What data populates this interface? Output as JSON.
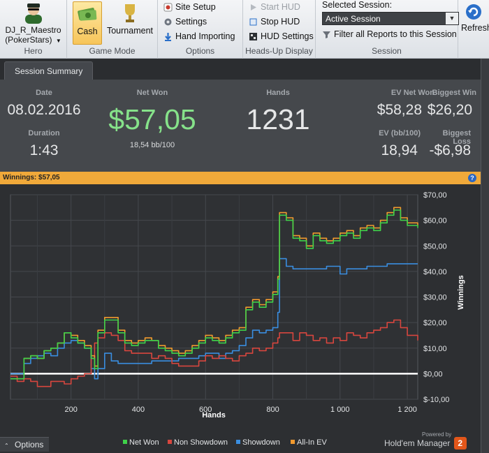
{
  "ribbon": {
    "hero": {
      "name": "DJ_R_Maestro",
      "site": "(PokerStars)",
      "group_label": "Hero"
    },
    "game_mode": {
      "cash_label": "Cash",
      "tournament_label": "Tournament",
      "group_label": "Game Mode"
    },
    "options": {
      "site_setup": "Site Setup",
      "settings": "Settings",
      "hand_importing": "Hand Importing",
      "group_label": "Options"
    },
    "hud": {
      "start_hud": "Start HUD",
      "stop_hud": "Stop HUD",
      "hud_settings": "HUD Settings",
      "group_label": "Heads-Up Display"
    },
    "session": {
      "selected_label": "Selected Session:",
      "dropdown_value": "Active Session",
      "filter_label": "Filter all Reports to this Session",
      "group_label": "Session",
      "refresh_label": "Refresh"
    }
  },
  "tab": {
    "label": "Session Summary"
  },
  "summary": {
    "date_label": "Date",
    "date_value": "08.02.2016",
    "duration_label": "Duration",
    "duration_value": "1:43",
    "net_won_label": "Net Won",
    "net_won_value": "$57,05",
    "net_won_sub": "18,54 bb/100",
    "hands_label": "Hands",
    "hands_value": "1231",
    "ev_net_won_label": "EV Net Won",
    "ev_net_won_value": "$58,28",
    "biggest_win_label": "Biggest Win",
    "biggest_win_value": "$26,20",
    "ev_bb_label": "EV (bb/100)",
    "ev_bb_value": "18,94",
    "biggest_loss_label": "Biggest Loss",
    "biggest_loss_value": "-$6,98"
  },
  "winnings_bar": {
    "label": "Winnings:",
    "value": "$57,05"
  },
  "bottom": {
    "options_label": "Options",
    "powered_by": "Powered by",
    "brand": "Hold'em Manager",
    "brand_num": "2"
  },
  "colors": {
    "net_won": "#3fd24a",
    "non_showdown": "#d8463e",
    "showdown": "#3a8ee0",
    "all_in_ev": "#f19a2e",
    "zero_line": "#ffffff",
    "net_won_text": "#86e28a"
  },
  "chart_data": {
    "type": "line",
    "xlabel": "Hands",
    "ylabel": "Winnings",
    "xlim": [
      20,
      1231
    ],
    "ylim": [
      -10,
      70
    ],
    "x_ticks": [
      200,
      400,
      600,
      800,
      1000,
      1200
    ],
    "x_tick_labels": [
      "200",
      "400",
      "600",
      "800",
      "1 000",
      "1 200"
    ],
    "y_ticks": [
      -10,
      0,
      10,
      20,
      30,
      40,
      50,
      60,
      70
    ],
    "y_tick_labels": [
      "-10,00",
      "0,00",
      "10,00",
      "20,00",
      "30,00",
      "40,00",
      "50,00",
      "60,00",
      "70,00"
    ],
    "grid": true,
    "legend_position": "bottom",
    "series": [
      {
        "name": "Net Won",
        "color": "#3fd24a",
        "x": [
          20,
          40,
          60,
          80,
          100,
          120,
          140,
          160,
          180,
          200,
          220,
          240,
          260,
          270,
          280,
          300,
          320,
          340,
          360,
          380,
          400,
          420,
          440,
          460,
          480,
          500,
          520,
          540,
          560,
          580,
          600,
          620,
          640,
          660,
          680,
          700,
          720,
          740,
          760,
          780,
          800,
          815,
          820,
          840,
          860,
          880,
          900,
          920,
          940,
          960,
          980,
          1000,
          1020,
          1040,
          1060,
          1080,
          1100,
          1120,
          1140,
          1160,
          1180,
          1200,
          1231
        ],
        "y": [
          -2,
          -2,
          6,
          7,
          6,
          9,
          10,
          12,
          16,
          14,
          12,
          10,
          6,
          2,
          16,
          21,
          21,
          16,
          12,
          11,
          12,
          13,
          13,
          10,
          9,
          8,
          7,
          8,
          10,
          12,
          14,
          13,
          12,
          14,
          16,
          17,
          25,
          28,
          26,
          28,
          31,
          37,
          62,
          60,
          53,
          52,
          49,
          54,
          52,
          51,
          52,
          54,
          55,
          53,
          56,
          57,
          56,
          59,
          62,
          64,
          60,
          58,
          57
        ]
      },
      {
        "name": "Non Showdown",
        "color": "#d8463e",
        "x": [
          20,
          40,
          60,
          80,
          100,
          120,
          140,
          160,
          180,
          200,
          220,
          240,
          260,
          270,
          280,
          300,
          320,
          340,
          360,
          380,
          400,
          420,
          440,
          460,
          480,
          500,
          520,
          540,
          560,
          580,
          600,
          620,
          640,
          660,
          680,
          700,
          720,
          740,
          760,
          780,
          800,
          815,
          820,
          840,
          860,
          880,
          900,
          920,
          940,
          960,
          980,
          1000,
          1020,
          1040,
          1060,
          1080,
          1100,
          1120,
          1140,
          1160,
          1180,
          1200,
          1231
        ],
        "y": [
          -1,
          -3,
          -2,
          -3,
          -5,
          -5,
          -3,
          -3,
          -4,
          -2,
          -1,
          0,
          6,
          12,
          14,
          16,
          15,
          13,
          9,
          8,
          8,
          8,
          6,
          7,
          6,
          4,
          3,
          3,
          3,
          5,
          7,
          6,
          7,
          6,
          5,
          7,
          8,
          10,
          9,
          10,
          12,
          14,
          16,
          16,
          13,
          16,
          15,
          13,
          14,
          12,
          14,
          13,
          16,
          15,
          14,
          16,
          17,
          18,
          20,
          21,
          18,
          15,
          13
        ]
      },
      {
        "name": "Showdown",
        "color": "#3a8ee0",
        "x": [
          20,
          40,
          60,
          80,
          100,
          120,
          140,
          160,
          180,
          200,
          220,
          240,
          260,
          270,
          280,
          300,
          320,
          340,
          360,
          380,
          400,
          420,
          440,
          460,
          480,
          500,
          520,
          540,
          560,
          580,
          600,
          620,
          640,
          660,
          680,
          700,
          720,
          740,
          760,
          780,
          800,
          815,
          820,
          840,
          860,
          880,
          900,
          920,
          940,
          960,
          980,
          1000,
          1020,
          1040,
          1060,
          1080,
          1100,
          1120,
          1140,
          1160,
          1180,
          1200,
          1231
        ],
        "y": [
          0,
          0,
          4,
          6,
          7,
          8,
          7,
          10,
          12,
          13,
          12,
          10,
          2,
          -2,
          2,
          8,
          5,
          4,
          4,
          4,
          4,
          4,
          5,
          5,
          5,
          5,
          6,
          6,
          6,
          7,
          8,
          8,
          6,
          8,
          9,
          11,
          14,
          17,
          16,
          17,
          18,
          24,
          45,
          42,
          41,
          41,
          41,
          41,
          41,
          42,
          42,
          39,
          41,
          41,
          41,
          42,
          42,
          42,
          43,
          43,
          43,
          43,
          43
        ]
      },
      {
        "name": "All-In EV",
        "color": "#f19a2e",
        "x": [
          20,
          40,
          60,
          80,
          100,
          120,
          140,
          160,
          180,
          200,
          220,
          240,
          260,
          270,
          280,
          300,
          320,
          340,
          360,
          380,
          400,
          420,
          440,
          460,
          480,
          500,
          520,
          540,
          560,
          580,
          600,
          620,
          640,
          660,
          680,
          700,
          720,
          740,
          760,
          780,
          800,
          815,
          820,
          840,
          860,
          880,
          900,
          920,
          940,
          960,
          980,
          1000,
          1020,
          1040,
          1060,
          1080,
          1100,
          1120,
          1140,
          1160,
          1180,
          1200,
          1231
        ],
        "y": [
          -2,
          -2,
          6,
          7,
          6,
          9,
          10,
          12,
          16,
          15,
          13,
          11,
          7,
          3,
          17,
          22,
          22,
          17,
          13,
          12,
          13,
          14,
          13,
          11,
          10,
          9,
          8,
          9,
          11,
          13,
          15,
          14,
          13,
          15,
          17,
          18,
          26,
          29,
          27,
          29,
          32,
          38,
          63,
          61,
          54,
          53,
          50,
          55,
          53,
          52,
          53,
          55,
          56,
          54,
          57,
          58,
          57,
          60,
          63,
          65,
          61,
          59,
          58
        ]
      }
    ]
  }
}
